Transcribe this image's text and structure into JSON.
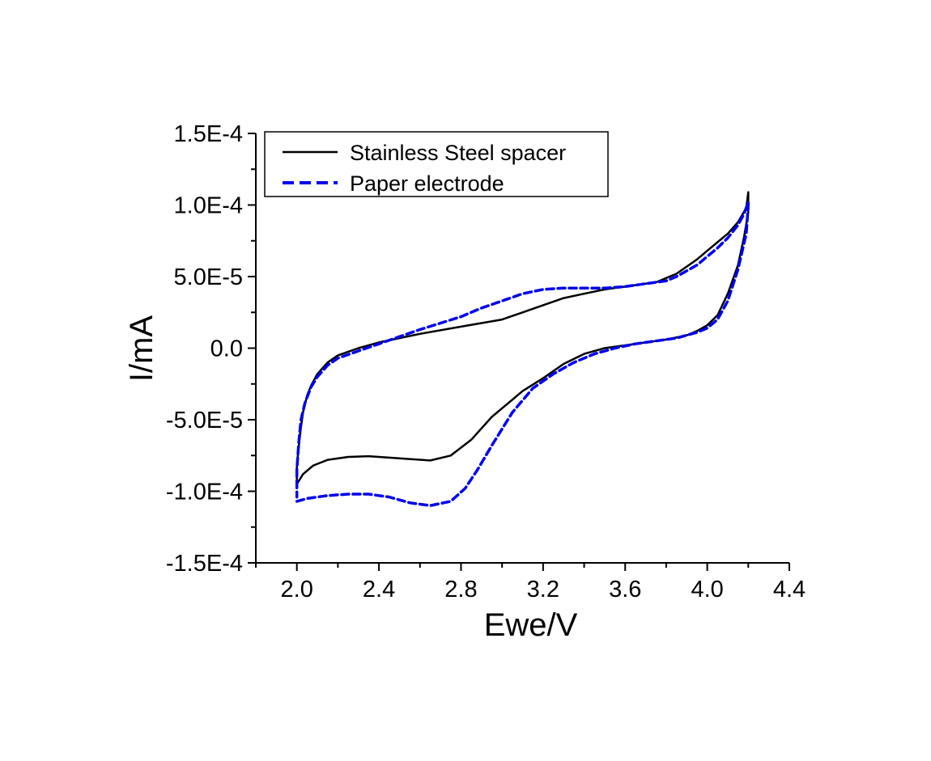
{
  "chart_data": {
    "type": "line",
    "xlabel": "Ewe/V",
    "ylabel": "I/mA",
    "xlim": [
      1.8,
      4.4
    ],
    "ylim": [
      -0.00015,
      0.00015
    ],
    "x_ticks": [
      2.0,
      2.4,
      2.8,
      3.2,
      3.6,
      4.0,
      4.4
    ],
    "x_tick_labels": [
      "2.0",
      "2.4",
      "2.8",
      "3.2",
      "3.6",
      "4.0",
      "4.4"
    ],
    "y_ticks": [
      0.00015,
      0.0001,
      5e-05,
      0,
      -5e-05,
      -0.0001,
      -0.00015
    ],
    "y_tick_labels": [
      "1.5E-4",
      "1.0E-4",
      "5.0E-5",
      "0.0",
      "-5.0E-5",
      "-1.0E-4",
      "-1.5E-4"
    ],
    "grid": false,
    "legend_position": "top-left",
    "series": [
      {
        "name": "Stainless Steel spacer",
        "color": "#000000",
        "style": "solid",
        "points": [
          [
            2.0,
            -9.5e-05
          ],
          [
            2.03,
            -8.8e-05
          ],
          [
            2.08,
            -8.2e-05
          ],
          [
            2.15,
            -7.8e-05
          ],
          [
            2.25,
            -7.6e-05
          ],
          [
            2.35,
            -7.55e-05
          ],
          [
            2.5,
            -7.7e-05
          ],
          [
            2.65,
            -7.85e-05
          ],
          [
            2.75,
            -7.5e-05
          ],
          [
            2.85,
            -6.4e-05
          ],
          [
            2.95,
            -4.8e-05
          ],
          [
            3.1,
            -3e-05
          ],
          [
            3.2,
            -2.1e-05
          ],
          [
            3.3,
            -1.1e-05
          ],
          [
            3.4,
            -4e-06
          ],
          [
            3.5,
            0.0
          ],
          [
            3.6,
            2e-06
          ],
          [
            3.7,
            4e-06
          ],
          [
            3.8,
            6e-06
          ],
          [
            3.9,
            9e-06
          ],
          [
            3.95,
            1.2e-05
          ],
          [
            4.0,
            1.6e-05
          ],
          [
            4.05,
            2.3e-05
          ],
          [
            4.1,
            3.8e-05
          ],
          [
            4.15,
            5.8e-05
          ],
          [
            4.18,
            7.8e-05
          ],
          [
            4.2,
            9.5e-05
          ],
          [
            4.2,
            0.000109
          ],
          [
            4.19,
            9.8e-05
          ],
          [
            4.15,
            8.8e-05
          ],
          [
            4.1,
            8e-05
          ],
          [
            4.05,
            7.4e-05
          ],
          [
            4.0,
            6.8e-05
          ],
          [
            3.95,
            6.2e-05
          ],
          [
            3.9,
            5.7e-05
          ],
          [
            3.85,
            5.2e-05
          ],
          [
            3.8,
            4.9e-05
          ],
          [
            3.75,
            4.6e-05
          ],
          [
            3.7,
            4.5e-05
          ],
          [
            3.6,
            4.3e-05
          ],
          [
            3.5,
            4.1e-05
          ],
          [
            3.4,
            3.8e-05
          ],
          [
            3.3,
            3.5e-05
          ],
          [
            3.2,
            3e-05
          ],
          [
            3.1,
            2.5e-05
          ],
          [
            3.0,
            2e-05
          ],
          [
            2.8,
            1.5e-05
          ],
          [
            2.6,
            1e-05
          ],
          [
            2.5,
            7e-06
          ],
          [
            2.4,
            4e-06
          ],
          [
            2.3,
            0.0
          ],
          [
            2.2,
            -5e-06
          ],
          [
            2.15,
            -1e-05
          ],
          [
            2.1,
            -1.8e-05
          ],
          [
            2.07,
            -2.6e-05
          ],
          [
            2.05,
            -3.3e-05
          ],
          [
            2.03,
            -4.5e-05
          ],
          [
            2.02,
            -5.5e-05
          ],
          [
            2.01,
            -6.8e-05
          ],
          [
            2.0,
            -8.2e-05
          ],
          [
            2.0,
            -9.5e-05
          ]
        ]
      },
      {
        "name": "Paper electrode",
        "color": "#0000ee",
        "style": "dashed",
        "points": [
          [
            2.0,
            -0.000107
          ],
          [
            2.05,
            -0.000105
          ],
          [
            2.15,
            -0.000103
          ],
          [
            2.25,
            -0.000102
          ],
          [
            2.35,
            -0.000102
          ],
          [
            2.45,
            -0.000104
          ],
          [
            2.55,
            -0.000108
          ],
          [
            2.65,
            -0.00011
          ],
          [
            2.75,
            -0.000107
          ],
          [
            2.82,
            -9.8e-05
          ],
          [
            2.88,
            -8.5e-05
          ],
          [
            2.95,
            -6.8e-05
          ],
          [
            3.05,
            -4.5e-05
          ],
          [
            3.15,
            -2.8e-05
          ],
          [
            3.25,
            -1.8e-05
          ],
          [
            3.35,
            -1e-05
          ],
          [
            3.45,
            -4e-06
          ],
          [
            3.55,
            0.0
          ],
          [
            3.65,
            3e-06
          ],
          [
            3.75,
            5e-06
          ],
          [
            3.85,
            7e-06
          ],
          [
            3.95,
            1.1e-05
          ],
          [
            4.0,
            1.4e-05
          ],
          [
            4.05,
            2e-05
          ],
          [
            4.1,
            3.3e-05
          ],
          [
            4.15,
            5.5e-05
          ],
          [
            4.19,
            8e-05
          ],
          [
            4.2,
            0.0001
          ],
          [
            4.2,
            0.000102
          ],
          [
            4.18,
            9.4e-05
          ],
          [
            4.15,
            8.6e-05
          ],
          [
            4.1,
            7.7e-05
          ],
          [
            4.05,
            7e-05
          ],
          [
            4.0,
            6.4e-05
          ],
          [
            3.95,
            5.8e-05
          ],
          [
            3.9,
            5.4e-05
          ],
          [
            3.85,
            5e-05
          ],
          [
            3.8,
            4.7e-05
          ],
          [
            3.7,
            4.5e-05
          ],
          [
            3.6,
            4.3e-05
          ],
          [
            3.5,
            4.2e-05
          ],
          [
            3.4,
            4.2e-05
          ],
          [
            3.3,
            4.2e-05
          ],
          [
            3.2,
            4.1e-05
          ],
          [
            3.1,
            3.8e-05
          ],
          [
            3.0,
            3.3e-05
          ],
          [
            2.9,
            2.8e-05
          ],
          [
            2.8,
            2.2e-05
          ],
          [
            2.6,
            1.3e-05
          ],
          [
            2.5,
            8e-06
          ],
          [
            2.4,
            3e-06
          ],
          [
            2.3,
            -2e-06
          ],
          [
            2.2,
            -7e-06
          ],
          [
            2.15,
            -1.2e-05
          ],
          [
            2.1,
            -2e-05
          ],
          [
            2.07,
            -2.7e-05
          ],
          [
            2.04,
            -3.8e-05
          ],
          [
            2.02,
            -5e-05
          ],
          [
            2.01,
            -6.5e-05
          ],
          [
            2.0,
            -8.5e-05
          ],
          [
            2.0,
            -0.000104
          ]
        ]
      }
    ]
  }
}
